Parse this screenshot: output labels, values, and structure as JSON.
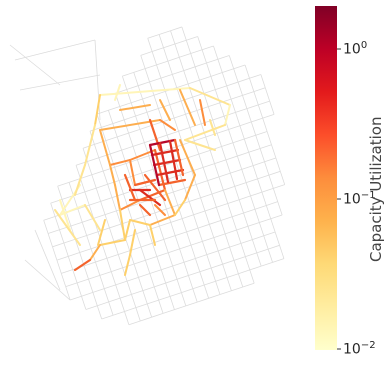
{
  "colorbar": {
    "label": "Capacity Utilization",
    "scale": "log",
    "range": [
      0.01,
      2.0
    ],
    "colormap": "YlOrRd",
    "colors": [
      "#ffffcc",
      "#ffeda0",
      "#fed976",
      "#feb24c",
      "#fd8d3c",
      "#fc4e2a",
      "#e31a1c",
      "#bd0026",
      "#800026"
    ],
    "ticks": [
      {
        "value": 1,
        "base": "10",
        "exp": "0"
      },
      {
        "value": 0.1,
        "base": "10",
        "exp": "−1"
      },
      {
        "value": 0.01,
        "base": "10",
        "exp": "−2"
      }
    ]
  },
  "colors": {
    "background_street": "#dcdcdc"
  }
}
